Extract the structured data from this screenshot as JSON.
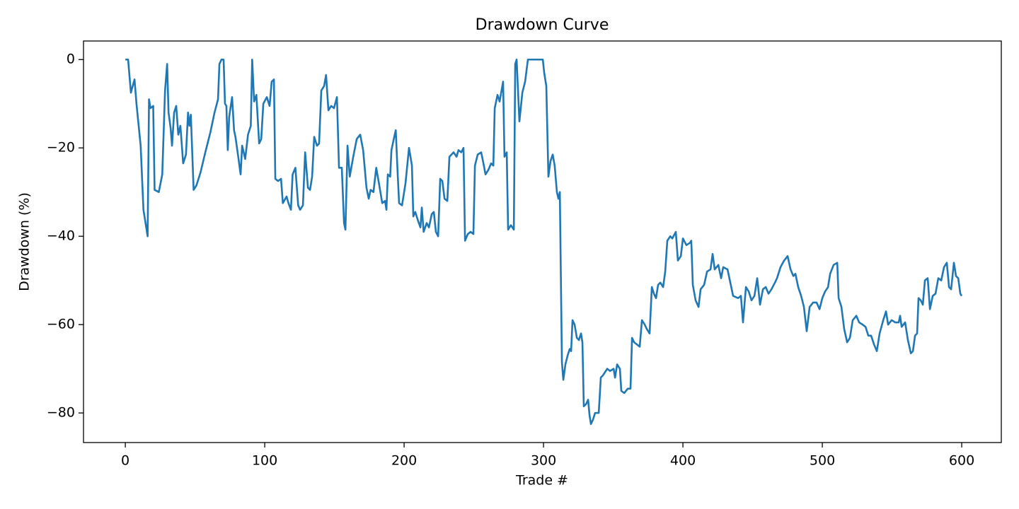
{
  "chart_data": {
    "type": "line",
    "title": "Drawdown Curve",
    "x_label": "Trade #",
    "y_label": "Drawdown (%)",
    "color": "#1f77b4",
    "grid": false,
    "xlim": [
      -30,
      628.4
    ],
    "ylim": [
      -86.7,
      4.2
    ],
    "xticks": [
      0,
      100,
      200,
      300,
      400,
      500,
      600
    ],
    "yticks": [
      {
        "value": 0,
        "label": "0"
      },
      {
        "value": -20,
        "label": "−20"
      },
      {
        "value": -40,
        "label": "−40"
      },
      {
        "value": -60,
        "label": "−60"
      },
      {
        "value": -80,
        "label": "−80"
      }
    ],
    "x": [
      0,
      2,
      4,
      6.6,
      8,
      11,
      13,
      16,
      17,
      18,
      20,
      21,
      24,
      26.5,
      28.5,
      30,
      31,
      32.5,
      33.5,
      35,
      36.5,
      38,
      39.5,
      41.5,
      43.5,
      45,
      46,
      47,
      49,
      51,
      54,
      57,
      61,
      64,
      66.5,
      67.5,
      69,
      70.5,
      71.5,
      72.5,
      73.5,
      74.5,
      76.6,
      78,
      79,
      81,
      82.7,
      83.8,
      86,
      88,
      90,
      91,
      92.4,
      94,
      96,
      97.5,
      99,
      101.5,
      103.5,
      105,
      106.6,
      107.6,
      109.6,
      111.7,
      113,
      115.7,
      117,
      118.8,
      120,
      122,
      124,
      125.4,
      127.4,
      129,
      131,
      132.5,
      134,
      135.5,
      137.5,
      139,
      140.6,
      142.6,
      144,
      145.7,
      147.7,
      149.7,
      151.8,
      153.3,
      155.3,
      156.9,
      157.9,
      159.4,
      161,
      163.5,
      166,
      168.5,
      170.6,
      173,
      174.6,
      176,
      178,
      180,
      182.2,
      184.3,
      186.3,
      187.3,
      188.3,
      190,
      190.9,
      192.9,
      194,
      195.4,
      196.4,
      198.5,
      201,
      203.5,
      205.6,
      206.6,
      208,
      210,
      211.7,
      212.7,
      214,
      216.2,
      217.8,
      219.8,
      221.3,
      222.8,
      224.4,
      225.9,
      227.4,
      229,
      231,
      232.5,
      235.5,
      237.6,
      239,
      241,
      242.6,
      243.7,
      245.7,
      247.7,
      249.7,
      250.8,
      252.8,
      255.3,
      256.9,
      258.4,
      260.4,
      262.4,
      264,
      265,
      267,
      268.5,
      271,
      272,
      273.6,
      274.6,
      276.6,
      278.7,
      279.7,
      280.7,
      282.7,
      284.8,
      286.8,
      288.8,
      293.4,
      299.5,
      300.5,
      302,
      303.5,
      305,
      306.6,
      308,
      309.6,
      310.7,
      311.7,
      313.2,
      314.2,
      315.7,
      317.3,
      318.8,
      319.8,
      320.8,
      322.3,
      323.9,
      325.4,
      326.9,
      327.9,
      328.9,
      330.5,
      332,
      333,
      334,
      335.5,
      337,
      339.6,
      341.1,
      342.6,
      345.7,
      347.7,
      350.3,
      351.3,
      352.8,
      354.8,
      355.8,
      357.9,
      360.4,
      362.4,
      363.5,
      365,
      367,
      369,
      370.6,
      372.6,
      374.1,
      376.1,
      377.7,
      379.2,
      380.7,
      382.2,
      383.8,
      385.8,
      387.3,
      388.8,
      390.9,
      392.4,
      394.9,
      396.4,
      398.5,
      400,
      402.5,
      405,
      406,
      407.1,
      409.1,
      411.2,
      412.7,
      415.2,
      417.3,
      419.8,
      421.3,
      422.8,
      425.4,
      427.4,
      428.9,
      432,
      434,
      436,
      439.6,
      441.6,
      443.1,
      445.2,
      447.2,
      449.2,
      451.3,
      453.3,
      455.3,
      457.4,
      459.4,
      461.4,
      463.5,
      466,
      467.5,
      470,
      472.6,
      475.1,
      477.2,
      479.2,
      480.7,
      482.7,
      484.8,
      486.8,
      488.8,
      490.9,
      493.4,
      495.9,
      498,
      500,
      502,
      504.1,
      505.6,
      508.1,
      510.7,
      511.7,
      513.7,
      515.7,
      517.8,
      519.8,
      521.8,
      524.4,
      526.4,
      528.9,
      531,
      533,
      535,
      537.1,
      539.1,
      541.1,
      543.7,
      545.7,
      547.2,
      549.7,
      552.3,
      554.8,
      555.8,
      556.9,
      559.4,
      561.4,
      563.5,
      565,
      566.5,
      568,
      569,
      570.6,
      572.1,
      573.6,
      575.6,
      577.2,
      579.2,
      581.2,
      583.2,
      585.3,
      587.3,
      589.3,
      590.9,
      592.4,
      594.4,
      595.9,
      597.5,
      599,
      600
    ],
    "values": [
      0,
      0,
      -7.5,
      -4.5,
      -10,
      -19.5,
      -34,
      -40,
      -9,
      -11,
      -10.5,
      -29.5,
      -30,
      -26,
      -7,
      -1,
      -12,
      -15.5,
      -19.5,
      -12,
      -10.5,
      -17,
      -15,
      -23.5,
      -21.5,
      -12,
      -15,
      -12.5,
      -29.5,
      -28.5,
      -25.5,
      -21.5,
      -16.5,
      -12,
      -9,
      -1,
      0,
      0,
      -10,
      -10.5,
      -20.5,
      -13,
      -8.5,
      -16,
      -17.5,
      -22,
      -26,
      -19.5,
      -22.5,
      -17,
      -15,
      0,
      -9.5,
      -8,
      -19,
      -18,
      -10,
      -8.5,
      -10.5,
      -5,
      -4.5,
      -27,
      -27.5,
      -27,
      -32.5,
      -31,
      -32.5,
      -34,
      -26,
      -24.5,
      -33,
      -34,
      -33,
      -21,
      -29,
      -29.5,
      -26.5,
      -17.5,
      -19.5,
      -19,
      -7,
      -6,
      -3.5,
      -11.5,
      -10.5,
      -11,
      -8.5,
      -24.5,
      -24.5,
      -37,
      -38.5,
      -19.5,
      -26.5,
      -22,
      -18,
      -17,
      -20.5,
      -29,
      -31.5,
      -29.5,
      -30,
      -24.5,
      -28.5,
      -32.5,
      -32,
      -34,
      -26,
      -26.5,
      -20.5,
      -17.5,
      -16,
      -26,
      -32.5,
      -33,
      -28,
      -20,
      -24,
      -35.5,
      -34.5,
      -36.5,
      -38,
      -33.5,
      -39,
      -37,
      -38,
      -35,
      -34.5,
      -39,
      -40,
      -27,
      -27.5,
      -31.5,
      -32,
      -22,
      -21,
      -22,
      -20.5,
      -21,
      -20,
      -41,
      -39.5,
      -39,
      -39.5,
      -24,
      -21.5,
      -21,
      -23.5,
      -26,
      -25,
      -23.5,
      -24,
      -11,
      -8,
      -9.5,
      -5,
      -22,
      -21,
      -38.5,
      -37.5,
      -38.5,
      -1,
      0,
      -14,
      -7.5,
      -5,
      0,
      0,
      0,
      -3,
      -6,
      -26.5,
      -23,
      -21.5,
      -24,
      -30,
      -31.5,
      -30,
      -68.5,
      -72.5,
      -69,
      -67,
      -65.5,
      -66,
      -59,
      -60,
      -63,
      -63.5,
      -62,
      -64,
      -78.5,
      -78,
      -77,
      -80.5,
      -82.5,
      -81.5,
      -80,
      -80,
      -72,
      -71.5,
      -70,
      -70.5,
      -70,
      -72,
      -69,
      -70,
      -75,
      -75.5,
      -74.5,
      -74.5,
      -63,
      -64,
      -64.5,
      -65,
      -59,
      -60,
      -61,
      -62,
      -51.5,
      -53,
      -54,
      -51,
      -50.5,
      -51.5,
      -48,
      -41,
      -40,
      -40.5,
      -39,
      -45.5,
      -44.5,
      -40.5,
      -42,
      -41.5,
      -41,
      -51,
      -54.5,
      -56,
      -52,
      -51,
      -48,
      -47.5,
      -44,
      -47.5,
      -46.5,
      -49.5,
      -47,
      -47.5,
      -50.5,
      -53.5,
      -54,
      -53.5,
      -59.5,
      -51.5,
      -52.5,
      -54.5,
      -53.5,
      -49.5,
      -55.5,
      -52,
      -51.5,
      -53,
      -52,
      -50.5,
      -49.5,
      -47,
      -45.5,
      -44.5,
      -47.5,
      -49,
      -48.5,
      -51.5,
      -53.5,
      -56,
      -61.5,
      -56,
      -55,
      -55,
      -56.5,
      -54,
      -52.5,
      -51.5,
      -48.5,
      -46.5,
      -46,
      -54,
      -56,
      -61,
      -64,
      -63,
      -59,
      -58,
      -59.5,
      -60,
      -60.5,
      -62.5,
      -62.5,
      -64.5,
      -66,
      -62,
      -59,
      -57,
      -60,
      -59,
      -59.5,
      -59.5,
      -58,
      -60.5,
      -59.5,
      -63.5,
      -66.5,
      -66,
      -62.5,
      -62,
      -54,
      -54.5,
      -55.5,
      -50,
      -49.5,
      -56.5,
      -53.5,
      -53,
      -49.5,
      -50,
      -47,
      -46,
      -51.5,
      -52,
      -46,
      -49,
      -49.5,
      -53,
      -53.5
    ]
  }
}
